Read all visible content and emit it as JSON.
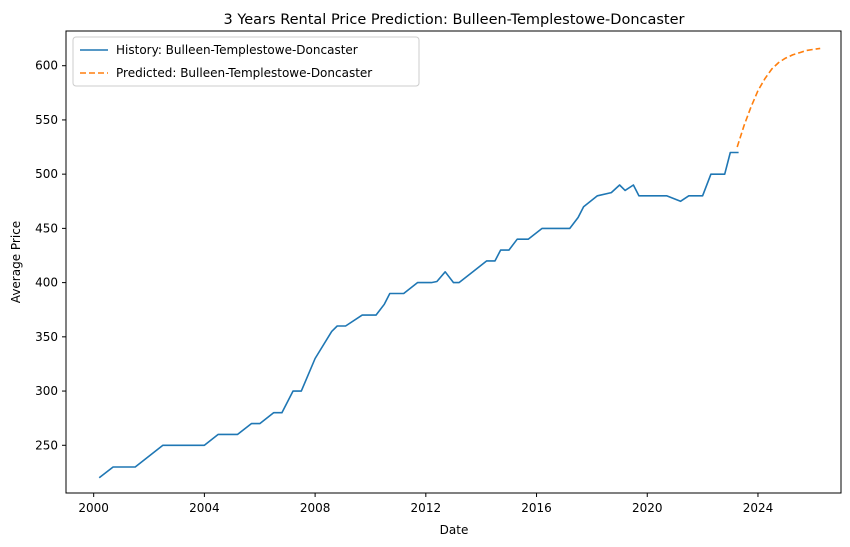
{
  "chart_data": {
    "type": "line",
    "title": "3 Years Rental Price Prediction: Bulleen-Templestowe-Doncaster",
    "xlabel": "Date",
    "ylabel": "Average Price",
    "xlim": [
      1999.0,
      2027.0
    ],
    "ylim": [
      206,
      632
    ],
    "x_ticks": [
      2000,
      2004,
      2008,
      2012,
      2016,
      2020,
      2024
    ],
    "y_ticks": [
      250,
      300,
      350,
      400,
      450,
      500,
      550,
      600
    ],
    "grid": false,
    "legend_position": "top-left",
    "series": [
      {
        "name": "History: Bulleen-Templestowe-Doncaster",
        "color": "#1f77b4",
        "style": "solid",
        "x": [
          2000.2,
          2000.7,
          2001.0,
          2001.5,
          2002.5,
          2003.0,
          2003.5,
          2004.0,
          2004.5,
          2005.0,
          2005.2,
          2005.7,
          2006.0,
          2006.5,
          2006.8,
          2007.2,
          2007.5,
          2008.0,
          2008.6,
          2008.8,
          2009.1,
          2009.7,
          2010.2,
          2010.5,
          2010.7,
          2011.2,
          2011.7,
          2012.0,
          2012.2,
          2012.4,
          2012.7,
          2013.0,
          2013.2,
          2013.7,
          2014.2,
          2014.5,
          2014.7,
          2015.0,
          2015.3,
          2015.7,
          2016.2,
          2016.5,
          2016.7,
          2017.2,
          2017.5,
          2017.7,
          2018.2,
          2018.7,
          2019.0,
          2019.2,
          2019.5,
          2019.7,
          2020.0,
          2020.5,
          2020.7,
          2021.2,
          2021.5,
          2021.8,
          2022.0,
          2022.3,
          2022.8,
          2023.0,
          2023.3
        ],
        "values": [
          220,
          230,
          230,
          230,
          250,
          250,
          250,
          250,
          260,
          260,
          260,
          270,
          270,
          280,
          280,
          300,
          300,
          330,
          355,
          360,
          360,
          370,
          370,
          380,
          390,
          390,
          400,
          400,
          400,
          401,
          410,
          400,
          400,
          410,
          420,
          420,
          430,
          430,
          440,
          440,
          450,
          450,
          450,
          450,
          460,
          470,
          480,
          483,
          490,
          485,
          490,
          480,
          480,
          480,
          480,
          475,
          480,
          480,
          480,
          500,
          500,
          520,
          520
        ]
      },
      {
        "name": "Predicted: Bulleen-Templestowe-Doncaster",
        "color": "#ff7f0e",
        "style": "dashed",
        "x": [
          2023.25,
          2023.5,
          2023.75,
          2024.0,
          2024.25,
          2024.5,
          2024.75,
          2025.0,
          2025.25,
          2025.5,
          2025.75,
          2026.0,
          2026.25
        ],
        "values": [
          525,
          545,
          562,
          577,
          588,
          597,
          603,
          607,
          610,
          612,
          614,
          615,
          616
        ]
      }
    ]
  }
}
